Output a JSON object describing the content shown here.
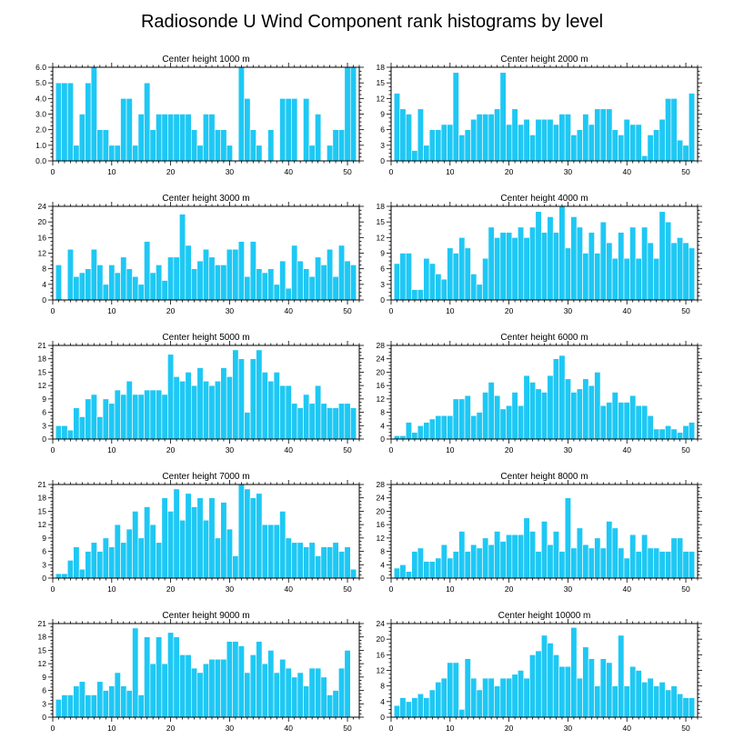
{
  "figure_title": "Radiosonde U Wind Component rank histograms by level",
  "bar_color": "#1ec8f4",
  "chart_data": [
    {
      "type": "bar",
      "title": "Center height 1000 m",
      "x": [
        1,
        2,
        3,
        4,
        5,
        6,
        7,
        8,
        9,
        10,
        11,
        12,
        13,
        14,
        15,
        16,
        17,
        18,
        19,
        20,
        21,
        22,
        23,
        24,
        25,
        26,
        27,
        28,
        29,
        30,
        31,
        32,
        33,
        34,
        35,
        36,
        37,
        38,
        39,
        40,
        41,
        42,
        43,
        44,
        45,
        46,
        47,
        48,
        49,
        50,
        51
      ],
      "values": [
        5,
        5,
        5,
        1,
        3,
        5,
        6,
        2,
        2,
        1,
        1,
        4,
        4,
        1,
        3,
        5,
        2,
        3,
        3,
        3,
        3,
        3,
        3,
        2,
        1,
        3,
        3,
        2,
        2,
        1,
        0,
        6,
        4,
        2,
        1,
        0,
        2,
        0,
        4,
        4,
        4,
        0,
        4,
        1,
        3,
        0,
        1,
        2,
        2,
        6,
        6
      ],
      "xlim": [
        0,
        52
      ],
      "ylim": [
        0,
        6
      ],
      "xticks": [
        0,
        10,
        20,
        30,
        40,
        50
      ],
      "yticks": [
        0,
        1,
        2,
        3,
        4,
        5,
        6
      ],
      "yticklabels": [
        "0.0",
        "1.0",
        "2.0",
        "3.0",
        "4.0",
        "5.0",
        "6.0"
      ]
    },
    {
      "type": "bar",
      "title": "Center height 2000 m",
      "x": [
        1,
        2,
        3,
        4,
        5,
        6,
        7,
        8,
        9,
        10,
        11,
        12,
        13,
        14,
        15,
        16,
        17,
        18,
        19,
        20,
        21,
        22,
        23,
        24,
        25,
        26,
        27,
        28,
        29,
        30,
        31,
        32,
        33,
        34,
        35,
        36,
        37,
        38,
        39,
        40,
        41,
        42,
        43,
        44,
        45,
        46,
        47,
        48,
        49,
        50,
        51
      ],
      "values": [
        13,
        10,
        9,
        2,
        10,
        3,
        6,
        6,
        7,
        7,
        17,
        5,
        6,
        8,
        9,
        9,
        9,
        10,
        17,
        7,
        10,
        7,
        8,
        5,
        8,
        8,
        8,
        7,
        9,
        9,
        5,
        6,
        9,
        7,
        10,
        10,
        10,
        6,
        5,
        8,
        7,
        7,
        1,
        5,
        6,
        8,
        12,
        12,
        4,
        3,
        13
      ],
      "xlim": [
        0,
        52
      ],
      "ylim": [
        0,
        18
      ],
      "xticks": [
        0,
        10,
        20,
        30,
        40,
        50
      ],
      "yticks": [
        0,
        3,
        6,
        9,
        12,
        15,
        18
      ],
      "yticklabels": [
        "0",
        "3",
        "6",
        "9",
        "12",
        "15",
        "18"
      ]
    },
    {
      "type": "bar",
      "title": "Center height 3000 m",
      "x": [
        1,
        2,
        3,
        4,
        5,
        6,
        7,
        8,
        9,
        10,
        11,
        12,
        13,
        14,
        15,
        16,
        17,
        18,
        19,
        20,
        21,
        22,
        23,
        24,
        25,
        26,
        27,
        28,
        29,
        30,
        31,
        32,
        33,
        34,
        35,
        36,
        37,
        38,
        39,
        40,
        41,
        42,
        43,
        44,
        45,
        46,
        47,
        48,
        49,
        50,
        51
      ],
      "values": [
        9,
        0,
        13,
        6,
        7,
        8,
        13,
        9,
        4,
        9,
        7,
        11,
        8,
        6,
        4,
        15,
        7,
        9,
        5,
        11,
        11,
        22,
        14,
        8,
        10,
        13,
        11,
        9,
        9,
        13,
        13,
        15,
        6,
        15,
        8,
        7,
        8,
        4,
        10,
        3,
        14,
        10,
        8,
        6,
        11,
        9,
        13,
        6,
        14,
        10,
        9
      ],
      "xlim": [
        0,
        52
      ],
      "ylim": [
        0,
        24
      ],
      "xticks": [
        0,
        10,
        20,
        30,
        40,
        50
      ],
      "yticks": [
        0,
        4,
        8,
        12,
        16,
        20,
        24
      ],
      "yticklabels": [
        "0",
        "4",
        "8",
        "12",
        "16",
        "20",
        "24"
      ]
    },
    {
      "type": "bar",
      "title": "Center height 4000 m",
      "x": [
        1,
        2,
        3,
        4,
        5,
        6,
        7,
        8,
        9,
        10,
        11,
        12,
        13,
        14,
        15,
        16,
        17,
        18,
        19,
        20,
        21,
        22,
        23,
        24,
        25,
        26,
        27,
        28,
        29,
        30,
        31,
        32,
        33,
        34,
        35,
        36,
        37,
        38,
        39,
        40,
        41,
        42,
        43,
        44,
        45,
        46,
        47,
        48,
        49,
        50,
        51
      ],
      "values": [
        7,
        9,
        9,
        2,
        2,
        8,
        7,
        5,
        4,
        10,
        9,
        12,
        10,
        5,
        3,
        8,
        14,
        12,
        13,
        13,
        12,
        14,
        12,
        14,
        17,
        13,
        16,
        13,
        18,
        10,
        16,
        14,
        9,
        13,
        9,
        15,
        11,
        8,
        13,
        8,
        14,
        8,
        14,
        11,
        8,
        17,
        15,
        11,
        12,
        11,
        10
      ],
      "xlim": [
        0,
        52
      ],
      "ylim": [
        0,
        18
      ],
      "xticks": [
        0,
        10,
        20,
        30,
        40,
        50
      ],
      "yticks": [
        0,
        3,
        6,
        9,
        12,
        15,
        18
      ],
      "yticklabels": [
        "0",
        "3",
        "6",
        "9",
        "12",
        "15",
        "18"
      ]
    },
    {
      "type": "bar",
      "title": "Center height 5000 m",
      "x": [
        1,
        2,
        3,
        4,
        5,
        6,
        7,
        8,
        9,
        10,
        11,
        12,
        13,
        14,
        15,
        16,
        17,
        18,
        19,
        20,
        21,
        22,
        23,
        24,
        25,
        26,
        27,
        28,
        29,
        30,
        31,
        32,
        33,
        34,
        35,
        36,
        37,
        38,
        39,
        40,
        41,
        42,
        43,
        44,
        45,
        46,
        47,
        48,
        49,
        50,
        51
      ],
      "values": [
        3,
        3,
        2,
        7,
        5,
        9,
        10,
        5,
        9,
        8,
        11,
        10,
        13,
        10,
        10,
        11,
        11,
        11,
        10,
        19,
        14,
        13,
        15,
        12,
        16,
        13,
        12,
        13,
        16,
        14,
        20,
        18,
        6,
        18,
        20,
        15,
        13,
        15,
        12,
        12,
        8,
        7,
        10,
        8,
        12,
        8,
        7,
        7,
        8,
        8,
        7
      ],
      "xlim": [
        0,
        52
      ],
      "ylim": [
        0,
        21
      ],
      "xticks": [
        0,
        10,
        20,
        30,
        40,
        50
      ],
      "yticks": [
        0,
        3,
        6,
        9,
        12,
        15,
        18,
        21
      ],
      "yticklabels": [
        "0",
        "3",
        "6",
        "9",
        "12",
        "15",
        "18",
        "21"
      ]
    },
    {
      "type": "bar",
      "title": "Center height 6000 m",
      "x": [
        1,
        2,
        3,
        4,
        5,
        6,
        7,
        8,
        9,
        10,
        11,
        12,
        13,
        14,
        15,
        16,
        17,
        18,
        19,
        20,
        21,
        22,
        23,
        24,
        25,
        26,
        27,
        28,
        29,
        30,
        31,
        32,
        33,
        34,
        35,
        36,
        37,
        38,
        39,
        40,
        41,
        42,
        43,
        44,
        45,
        46,
        47,
        48,
        49,
        50,
        51
      ],
      "values": [
        1,
        1,
        5,
        2,
        4,
        5,
        6,
        7,
        7,
        7,
        12,
        12,
        13,
        7,
        8,
        14,
        17,
        13,
        9,
        10,
        14,
        10,
        19,
        17,
        15,
        14,
        19,
        24,
        25,
        18,
        14,
        15,
        18,
        16,
        20,
        10,
        11,
        14,
        11,
        11,
        13,
        10,
        10,
        7,
        3,
        3,
        4,
        3,
        2,
        4,
        5
      ],
      "xlim": [
        0,
        52
      ],
      "ylim": [
        0,
        28
      ],
      "xticks": [
        0,
        10,
        20,
        30,
        40,
        50
      ],
      "yticks": [
        0,
        4,
        8,
        12,
        16,
        20,
        24,
        28
      ],
      "yticklabels": [
        "0",
        "4",
        "8",
        "12",
        "16",
        "20",
        "24",
        "28"
      ]
    },
    {
      "type": "bar",
      "title": "Center height 7000 m",
      "x": [
        1,
        2,
        3,
        4,
        5,
        6,
        7,
        8,
        9,
        10,
        11,
        12,
        13,
        14,
        15,
        16,
        17,
        18,
        19,
        20,
        21,
        22,
        23,
        24,
        25,
        26,
        27,
        28,
        29,
        30,
        31,
        32,
        33,
        34,
        35,
        36,
        37,
        38,
        39,
        40,
        41,
        42,
        43,
        44,
        45,
        46,
        47,
        48,
        49,
        50,
        51
      ],
      "values": [
        1,
        1,
        4,
        7,
        2,
        6,
        8,
        6,
        9,
        7,
        12,
        8,
        11,
        15,
        9,
        16,
        12,
        8,
        18,
        15,
        20,
        13,
        19,
        16,
        18,
        13,
        18,
        9,
        17,
        11,
        5,
        21,
        20,
        18,
        19,
        12,
        12,
        12,
        15,
        9,
        8,
        8,
        7,
        8,
        5,
        7,
        7,
        8,
        6,
        7,
        2
      ],
      "xlim": [
        0,
        52
      ],
      "ylim": [
        0,
        21
      ],
      "xticks": [
        0,
        10,
        20,
        30,
        40,
        50
      ],
      "yticks": [
        0,
        3,
        6,
        9,
        12,
        15,
        18,
        21
      ],
      "yticklabels": [
        "0",
        "3",
        "6",
        "9",
        "12",
        "15",
        "18",
        "21"
      ]
    },
    {
      "type": "bar",
      "title": "Center height 8000 m",
      "x": [
        1,
        2,
        3,
        4,
        5,
        6,
        7,
        8,
        9,
        10,
        11,
        12,
        13,
        14,
        15,
        16,
        17,
        18,
        19,
        20,
        21,
        22,
        23,
        24,
        25,
        26,
        27,
        28,
        29,
        30,
        31,
        32,
        33,
        34,
        35,
        36,
        37,
        38,
        39,
        40,
        41,
        42,
        43,
        44,
        45,
        46,
        47,
        48,
        49,
        50,
        51
      ],
      "values": [
        3,
        4,
        2,
        8,
        9,
        5,
        5,
        6,
        10,
        6,
        8,
        14,
        8,
        10,
        9,
        12,
        10,
        14,
        11,
        13,
        13,
        13,
        18,
        14,
        8,
        17,
        10,
        14,
        8,
        24,
        9,
        15,
        10,
        9,
        12,
        9,
        17,
        15,
        9,
        6,
        13,
        8,
        13,
        9,
        9,
        8,
        8,
        12,
        12,
        8,
        8
      ],
      "xlim": [
        0,
        52
      ],
      "ylim": [
        0,
        28
      ],
      "xticks": [
        0,
        10,
        20,
        30,
        40,
        50
      ],
      "yticks": [
        0,
        4,
        8,
        12,
        16,
        20,
        24,
        28
      ],
      "yticklabels": [
        "0",
        "4",
        "8",
        "12",
        "16",
        "20",
        "24",
        "28"
      ]
    },
    {
      "type": "bar",
      "title": "Center height 9000 m",
      "x": [
        1,
        2,
        3,
        4,
        5,
        6,
        7,
        8,
        9,
        10,
        11,
        12,
        13,
        14,
        15,
        16,
        17,
        18,
        19,
        20,
        21,
        22,
        23,
        24,
        25,
        26,
        27,
        28,
        29,
        30,
        31,
        32,
        33,
        34,
        35,
        36,
        37,
        38,
        39,
        40,
        41,
        42,
        43,
        44,
        45,
        46,
        47,
        48,
        49,
        50,
        51
      ],
      "values": [
        4,
        5,
        5,
        7,
        8,
        5,
        5,
        8,
        6,
        7,
        10,
        7,
        6,
        20,
        5,
        18,
        12,
        18,
        12,
        19,
        18,
        14,
        14,
        11,
        10,
        12,
        13,
        13,
        13,
        17,
        17,
        16,
        10,
        14,
        17,
        12,
        15,
        10,
        13,
        11,
        9,
        10,
        7,
        11,
        11,
        9,
        5,
        6,
        11,
        15,
        0
      ],
      "xlim": [
        0,
        52
      ],
      "ylim": [
        0,
        21
      ],
      "xticks": [
        0,
        10,
        20,
        30,
        40,
        50
      ],
      "yticks": [
        0,
        3,
        6,
        9,
        12,
        15,
        18,
        21
      ],
      "yticklabels": [
        "0",
        "3",
        "6",
        "9",
        "12",
        "15",
        "18",
        "21"
      ]
    },
    {
      "type": "bar",
      "title": "Center height 10000 m",
      "x": [
        1,
        2,
        3,
        4,
        5,
        6,
        7,
        8,
        9,
        10,
        11,
        12,
        13,
        14,
        15,
        16,
        17,
        18,
        19,
        20,
        21,
        22,
        23,
        24,
        25,
        26,
        27,
        28,
        29,
        30,
        31,
        32,
        33,
        34,
        35,
        36,
        37,
        38,
        39,
        40,
        41,
        42,
        43,
        44,
        45,
        46,
        47,
        48,
        49,
        50,
        51
      ],
      "values": [
        3,
        5,
        4,
        5,
        6,
        5,
        7,
        9,
        10,
        14,
        14,
        2,
        15,
        10,
        7,
        10,
        10,
        8,
        10,
        10,
        11,
        12,
        10,
        16,
        17,
        21,
        19,
        16,
        13,
        13,
        23,
        10,
        18,
        15,
        8,
        15,
        14,
        8,
        21,
        8,
        13,
        12,
        9,
        10,
        8,
        9,
        7,
        8,
        6,
        5,
        5
      ],
      "xlim": [
        0,
        52
      ],
      "ylim": [
        0,
        24
      ],
      "xticks": [
        0,
        10,
        20,
        30,
        40,
        50
      ],
      "yticks": [
        0,
        4,
        8,
        12,
        16,
        20,
        24
      ],
      "yticklabels": [
        "0",
        "4",
        "8",
        "12",
        "16",
        "20",
        "24"
      ]
    }
  ]
}
